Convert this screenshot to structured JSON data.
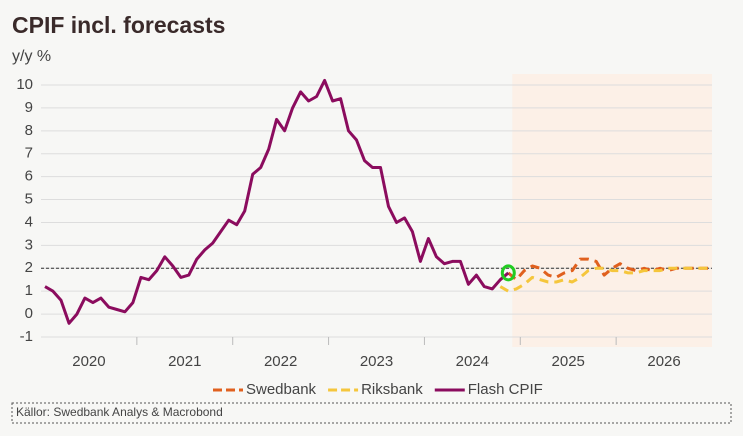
{
  "chart_data": {
    "type": "line",
    "title": "CPIF incl. forecasts",
    "y_label": "y/y %",
    "xticks": [
      "2020",
      "2021",
      "2022",
      "2023",
      "2024",
      "2025",
      "2026"
    ],
    "ylim": [
      -1,
      10
    ],
    "yticks": [
      -1,
      0,
      1,
      2,
      3,
      4,
      5,
      6,
      7,
      8,
      9,
      10
    ],
    "grid": true,
    "reference_line": 2,
    "series": [
      {
        "name": "Swedbank",
        "color": "#e0601e",
        "dashed": true,
        "values": [
          null,
          null,
          null,
          null,
          null,
          null,
          null,
          null,
          null,
          null,
          null,
          null,
          null,
          null,
          null,
          null,
          null,
          null,
          null,
          null,
          null,
          null,
          null,
          null,
          null,
          null,
          null,
          null,
          null,
          null,
          null,
          null,
          null,
          null,
          null,
          null,
          null,
          null,
          null,
          null,
          null,
          null,
          null,
          null,
          null,
          null,
          null,
          null,
          null,
          null,
          null,
          null,
          null,
          null,
          null,
          null,
          null,
          null,
          1.8,
          1.5,
          1.9,
          2.1,
          2.0,
          1.7,
          1.6,
          1.8,
          1.9,
          2.4,
          2.4,
          2.3,
          1.7,
          2.0,
          2.2,
          2.0,
          1.9,
          2.0,
          1.9,
          2.0,
          1.9,
          2.0,
          2.0,
          2.0,
          2.0,
          2.0
        ]
      },
      {
        "name": "Riksbank",
        "color": "#f5c63c",
        "dashed": true,
        "values": [
          null,
          null,
          null,
          null,
          null,
          null,
          null,
          null,
          null,
          null,
          null,
          null,
          null,
          null,
          null,
          null,
          null,
          null,
          null,
          null,
          null,
          null,
          null,
          null,
          null,
          null,
          null,
          null,
          null,
          null,
          null,
          null,
          null,
          null,
          null,
          null,
          null,
          null,
          null,
          null,
          null,
          null,
          null,
          null,
          null,
          null,
          null,
          null,
          null,
          null,
          null,
          null,
          null,
          null,
          null,
          null,
          null,
          1.2,
          1.0,
          1.1,
          1.3,
          1.6,
          1.5,
          1.4,
          1.4,
          1.5,
          1.4,
          1.6,
          1.9,
          2.0,
          2.0,
          1.9,
          1.9,
          1.8,
          1.8,
          1.9,
          1.9,
          1.9,
          2.0,
          2.0,
          2.0,
          2.0,
          2.0,
          2.0
        ]
      },
      {
        "name": "Flash CPIF",
        "color": "#8b0c5e",
        "dashed": false,
        "values": [
          1.2,
          1.0,
          0.6,
          -0.4,
          0.0,
          0.7,
          0.5,
          0.7,
          0.3,
          0.2,
          0.1,
          0.5,
          1.6,
          1.5,
          1.9,
          2.5,
          2.1,
          1.6,
          1.7,
          2.4,
          2.8,
          3.1,
          3.6,
          4.1,
          3.9,
          4.5,
          6.1,
          6.4,
          7.2,
          8.5,
          8.0,
          9.0,
          9.7,
          9.3,
          9.5,
          10.2,
          9.3,
          9.4,
          8.0,
          7.6,
          6.7,
          6.4,
          6.4,
          4.7,
          4.0,
          4.2,
          3.6,
          2.3,
          3.3,
          2.5,
          2.2,
          2.3,
          2.3,
          1.3,
          1.7,
          1.2,
          1.1,
          1.5,
          1.8,
          null,
          null,
          null,
          null,
          null,
          null,
          null,
          null,
          null,
          null,
          null,
          null,
          null,
          null,
          null,
          null,
          null,
          null,
          null,
          null,
          null,
          null,
          null,
          null,
          null
        ]
      }
    ],
    "source": "Källor: Swedbank Analys & Macrobond"
  }
}
